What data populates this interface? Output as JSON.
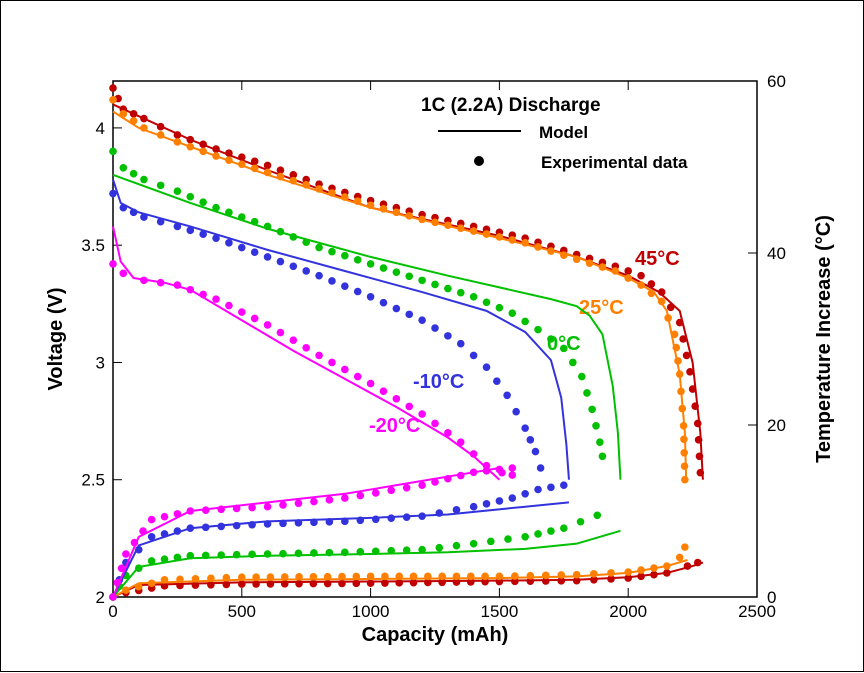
{
  "chart_data": {
    "type": "line",
    "title": "1C (2.2A) Discharge",
    "xlabel": "Capacity (mAh)",
    "ylabel": "Voltage (V)",
    "y2label": "Temperature Increase (°C)",
    "xlim": [
      0,
      2500
    ],
    "ylim": [
      2,
      4.2
    ],
    "y2lim": [
      0,
      60
    ],
    "xticks": [
      "0",
      "500",
      "1000",
      "1500",
      "2000",
      "2500"
    ],
    "yticks": [
      "2",
      "2.5",
      "3",
      "3.5",
      "4"
    ],
    "y2ticks": [
      "0",
      "20",
      "40",
      "60"
    ],
    "legend": {
      "title": "1C (2.2A) Discharge",
      "model_label": "Model",
      "exp_label": "Experimental data",
      "placement": "top-center"
    },
    "series": [
      {
        "name": "45°C",
        "color": "#c00000",
        "voltage_model": [
          [
            0,
            4.1
          ],
          [
            100,
            4.05
          ],
          [
            300,
            3.95
          ],
          [
            600,
            3.82
          ],
          [
            1000,
            3.66
          ],
          [
            1500,
            3.54
          ],
          [
            1800,
            3.45
          ],
          [
            2000,
            3.37
          ],
          [
            2120,
            3.3
          ],
          [
            2200,
            3.22
          ],
          [
            2250,
            3.0
          ],
          [
            2280,
            2.7
          ],
          [
            2290,
            2.5
          ]
        ],
        "voltage_exp": [
          [
            0,
            4.17
          ],
          [
            40,
            4.08
          ],
          [
            120,
            4.04
          ],
          [
            250,
            3.97
          ],
          [
            400,
            3.91
          ],
          [
            600,
            3.84
          ],
          [
            800,
            3.76
          ],
          [
            1000,
            3.69
          ],
          [
            1200,
            3.63
          ],
          [
            1400,
            3.58
          ],
          [
            1600,
            3.53
          ],
          [
            1800,
            3.46
          ],
          [
            1950,
            3.41
          ],
          [
            2050,
            3.37
          ],
          [
            2130,
            3.3
          ],
          [
            2200,
            3.17
          ],
          [
            2240,
            2.96
          ],
          [
            2270,
            2.74
          ],
          [
            2280,
            2.53
          ]
        ],
        "temp_model": [
          [
            0,
            0
          ],
          [
            100,
            1.4
          ],
          [
            500,
            1.7
          ],
          [
            1000,
            1.8
          ],
          [
            1500,
            1.9
          ],
          [
            1800,
            2
          ],
          [
            2000,
            2.3
          ],
          [
            2150,
            2.8
          ],
          [
            2250,
            3.6
          ],
          [
            2290,
            4
          ]
        ],
        "temp_exp": [
          [
            0,
            0
          ],
          [
            50,
            0.5
          ],
          [
            200,
            1.3
          ],
          [
            500,
            1.5
          ],
          [
            1000,
            1.6
          ],
          [
            1500,
            1.8
          ],
          [
            1800,
            1.9
          ],
          [
            2000,
            2.2
          ],
          [
            2150,
            2.8
          ],
          [
            2230,
            3.6
          ],
          [
            2270,
            4
          ]
        ]
      },
      {
        "name": "25°C",
        "color": "#ff8000",
        "voltage_model": [
          [
            0,
            4.07
          ],
          [
            100,
            4.0
          ],
          [
            300,
            3.92
          ],
          [
            600,
            3.8
          ],
          [
            1000,
            3.66
          ],
          [
            1500,
            3.53
          ],
          [
            1800,
            3.45
          ],
          [
            2000,
            3.36
          ],
          [
            2100,
            3.3
          ],
          [
            2150,
            3.22
          ],
          [
            2200,
            2.95
          ],
          [
            2220,
            2.7
          ],
          [
            2225,
            2.5
          ]
        ],
        "voltage_exp": [
          [
            0,
            4.12
          ],
          [
            40,
            4.06
          ],
          [
            120,
            4.0
          ],
          [
            250,
            3.94
          ],
          [
            400,
            3.88
          ],
          [
            600,
            3.81
          ],
          [
            800,
            3.74
          ],
          [
            1000,
            3.67
          ],
          [
            1200,
            3.61
          ],
          [
            1400,
            3.56
          ],
          [
            1600,
            3.51
          ],
          [
            1800,
            3.44
          ],
          [
            1950,
            3.39
          ],
          [
            2050,
            3.33
          ],
          [
            2130,
            3.26
          ],
          [
            2180,
            3.12
          ],
          [
            2200,
            2.95
          ],
          [
            2215,
            2.73
          ],
          [
            2220,
            2.5
          ]
        ],
        "temp_model": [
          [
            0,
            0
          ],
          [
            100,
            1.6
          ],
          [
            500,
            2
          ],
          [
            1000,
            2.1
          ],
          [
            1500,
            2.2
          ],
          [
            1800,
            2.4
          ],
          [
            2000,
            2.8
          ],
          [
            2150,
            3.6
          ],
          [
            2230,
            4.3
          ]
        ],
        "temp_exp": [
          [
            0,
            0
          ],
          [
            50,
            0.8
          ],
          [
            200,
            2
          ],
          [
            500,
            2.3
          ],
          [
            1000,
            2.4
          ],
          [
            1500,
            2.4
          ],
          [
            1800,
            2.6
          ],
          [
            2000,
            2.9
          ],
          [
            2150,
            3.6
          ],
          [
            2200,
            4.6
          ],
          [
            2220,
            5.8
          ]
        ]
      },
      {
        "name": "0°C",
        "color": "#00c000",
        "voltage_model": [
          [
            0,
            3.8
          ],
          [
            100,
            3.76
          ],
          [
            300,
            3.68
          ],
          [
            600,
            3.57
          ],
          [
            1000,
            3.45
          ],
          [
            1300,
            3.37
          ],
          [
            1500,
            3.32
          ],
          [
            1700,
            3.27
          ],
          [
            1800,
            3.24
          ],
          [
            1850,
            3.2
          ],
          [
            1900,
            3.12
          ],
          [
            1940,
            2.9
          ],
          [
            1960,
            2.7
          ],
          [
            1970,
            2.5
          ]
        ],
        "voltage_exp": [
          [
            0,
            3.9
          ],
          [
            40,
            3.83
          ],
          [
            120,
            3.78
          ],
          [
            250,
            3.73
          ],
          [
            400,
            3.66
          ],
          [
            600,
            3.58
          ],
          [
            800,
            3.49
          ],
          [
            1000,
            3.42
          ],
          [
            1200,
            3.35
          ],
          [
            1400,
            3.28
          ],
          [
            1550,
            3.21
          ],
          [
            1650,
            3.14
          ],
          [
            1750,
            3.06
          ],
          [
            1820,
            2.94
          ],
          [
            1860,
            2.8
          ],
          [
            1890,
            2.66
          ],
          [
            1900,
            2.6
          ]
        ],
        "temp_model": [
          [
            0,
            0
          ],
          [
            100,
            3.5
          ],
          [
            300,
            4.5
          ],
          [
            600,
            4.8
          ],
          [
            1000,
            5
          ],
          [
            1300,
            5.2
          ],
          [
            1600,
            5.6
          ],
          [
            1800,
            6.2
          ],
          [
            1970,
            7.7
          ]
        ],
        "temp_exp": [
          [
            0,
            0
          ],
          [
            50,
            2.5
          ],
          [
            150,
            4.2
          ],
          [
            300,
            4.8
          ],
          [
            600,
            5
          ],
          [
            900,
            5.2
          ],
          [
            1200,
            5.5
          ],
          [
            1400,
            6.2
          ],
          [
            1600,
            7
          ],
          [
            1750,
            8
          ],
          [
            1880,
            9.5
          ]
        ]
      },
      {
        "name": "-10°C",
        "color": "#3333dd",
        "voltage_model": [
          [
            0,
            3.78
          ],
          [
            30,
            3.68
          ],
          [
            100,
            3.64
          ],
          [
            300,
            3.58
          ],
          [
            600,
            3.48
          ],
          [
            900,
            3.39
          ],
          [
            1200,
            3.3
          ],
          [
            1450,
            3.22
          ],
          [
            1600,
            3.13
          ],
          [
            1700,
            3.01
          ],
          [
            1740,
            2.85
          ],
          [
            1760,
            2.65
          ],
          [
            1770,
            2.5
          ]
        ],
        "voltage_exp": [
          [
            0,
            3.72
          ],
          [
            40,
            3.66
          ],
          [
            120,
            3.62
          ],
          [
            250,
            3.58
          ],
          [
            400,
            3.53
          ],
          [
            600,
            3.45
          ],
          [
            800,
            3.37
          ],
          [
            1000,
            3.28
          ],
          [
            1200,
            3.18
          ],
          [
            1350,
            3.08
          ],
          [
            1450,
            2.98
          ],
          [
            1530,
            2.86
          ],
          [
            1600,
            2.72
          ],
          [
            1640,
            2.62
          ],
          [
            1660,
            2.55
          ]
        ],
        "temp_model": [
          [
            0,
            0
          ],
          [
            100,
            6
          ],
          [
            300,
            8
          ],
          [
            600,
            8.8
          ],
          [
            1000,
            9.2
          ],
          [
            1300,
            9.6
          ],
          [
            1600,
            10.5
          ],
          [
            1770,
            11
          ]
        ],
        "temp_exp": [
          [
            0,
            0
          ],
          [
            50,
            4
          ],
          [
            150,
            7
          ],
          [
            300,
            8
          ],
          [
            600,
            8.5
          ],
          [
            900,
            8.8
          ],
          [
            1200,
            9.4
          ],
          [
            1400,
            10.5
          ],
          [
            1550,
            11.5
          ],
          [
            1650,
            12.5
          ],
          [
            1750,
            13
          ]
        ]
      },
      {
        "name": "-20°C",
        "color": "#ff00ff",
        "voltage_model": [
          [
            0,
            3.58
          ],
          [
            30,
            3.43
          ],
          [
            80,
            3.36
          ],
          [
            200,
            3.34
          ],
          [
            300,
            3.31
          ],
          [
            500,
            3.18
          ],
          [
            700,
            3.05
          ],
          [
            900,
            2.93
          ],
          [
            1100,
            2.81
          ],
          [
            1300,
            2.68
          ],
          [
            1400,
            2.6
          ],
          [
            1480,
            2.52
          ],
          [
            1500,
            2.5
          ]
        ],
        "voltage_exp": [
          [
            0,
            3.42
          ],
          [
            40,
            3.38
          ],
          [
            120,
            3.35
          ],
          [
            250,
            3.33
          ],
          [
            400,
            3.27
          ],
          [
            600,
            3.16
          ],
          [
            800,
            3.03
          ],
          [
            1000,
            2.91
          ],
          [
            1200,
            2.78
          ],
          [
            1350,
            2.66
          ],
          [
            1450,
            2.56
          ],
          [
            1510,
            2.53
          ],
          [
            1550,
            2.52
          ]
        ],
        "temp_model": [
          [
            0,
            0
          ],
          [
            100,
            7
          ],
          [
            300,
            10
          ],
          [
            600,
            11
          ],
          [
            900,
            12
          ],
          [
            1200,
            13.5
          ],
          [
            1400,
            14.5
          ],
          [
            1500,
            15
          ]
        ],
        "temp_exp": [
          [
            0,
            0
          ],
          [
            50,
            5
          ],
          [
            150,
            9
          ],
          [
            300,
            10
          ],
          [
            600,
            10.5
          ],
          [
            900,
            11.5
          ],
          [
            1200,
            13
          ],
          [
            1400,
            14.5
          ],
          [
            1550,
            15
          ]
        ]
      }
    ]
  }
}
